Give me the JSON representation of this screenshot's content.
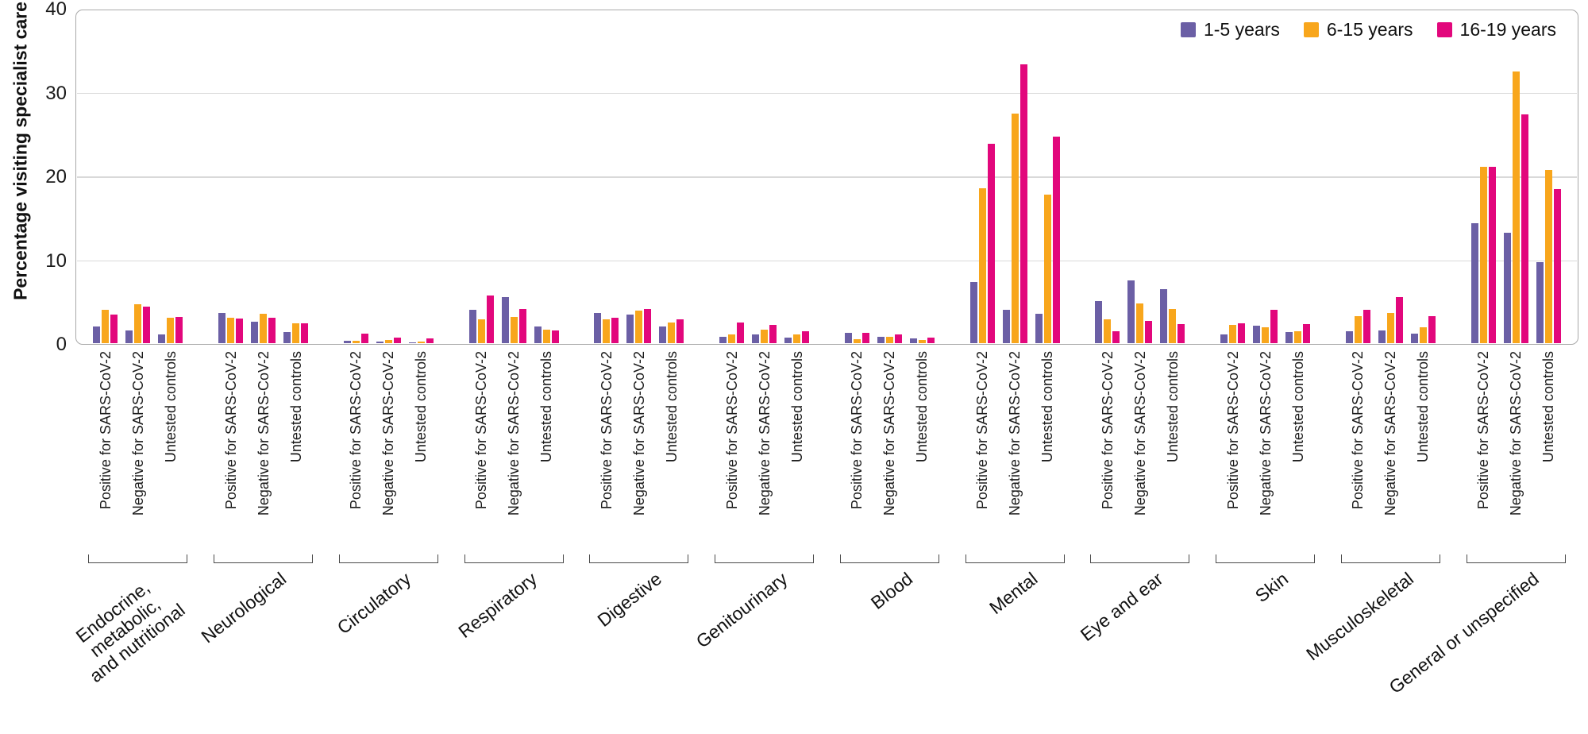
{
  "chart_data": {
    "type": "bar",
    "title": "",
    "ylabel": "Percentage visiting specialist care",
    "ylim": [
      0,
      40
    ],
    "yticks": [
      0,
      10,
      20,
      30,
      40
    ],
    "grid": "horizontal",
    "legend_position": "top-right",
    "series_names": [
      "1-5 years",
      "6-15 years",
      "16-19 years"
    ],
    "series_colors": [
      "#6b5fa5",
      "#f8a61c",
      "#e2077c"
    ],
    "group_labels": [
      "Positive for SARS-CoV-2",
      "Negative for SARS-CoV-2",
      "Untested controls"
    ],
    "categories": [
      {
        "label": "Endocrine,\nmetabolic,\nand nutritional",
        "groups": [
          {
            "label": "Positive for SARS-CoV-2",
            "values": [
              2.0,
              4.0,
              3.4
            ]
          },
          {
            "label": "Negative for SARS-CoV-2",
            "values": [
              1.5,
              4.6,
              4.4
            ]
          },
          {
            "label": "Untested controls",
            "values": [
              1.0,
              3.0,
              3.1
            ]
          }
        ]
      },
      {
        "label": "Neurological",
        "groups": [
          {
            "label": "Positive for SARS-CoV-2",
            "values": [
              3.6,
              3.0,
              2.9
            ]
          },
          {
            "label": "Negative for SARS-CoV-2",
            "values": [
              2.6,
              3.5,
              3.0
            ]
          },
          {
            "label": "Untested controls",
            "values": [
              1.3,
              2.4,
              2.4
            ]
          }
        ]
      },
      {
        "label": "Circulatory",
        "groups": [
          {
            "label": "Positive for SARS-CoV-2",
            "values": [
              0.3,
              0.3,
              1.1
            ]
          },
          {
            "label": "Negative for SARS-CoV-2",
            "values": [
              0.2,
              0.4,
              0.7
            ]
          },
          {
            "label": "Untested controls",
            "values": [
              0.1,
              0.2,
              0.6
            ]
          }
        ]
      },
      {
        "label": "Respiratory",
        "groups": [
          {
            "label": "Positive for SARS-CoV-2",
            "values": [
              4.0,
              2.8,
              5.7
            ]
          },
          {
            "label": "Negative for SARS-CoV-2",
            "values": [
              5.5,
              3.1,
              4.1
            ]
          },
          {
            "label": "Untested controls",
            "values": [
              2.0,
              1.6,
              1.5
            ]
          }
        ]
      },
      {
        "label": "Digestive",
        "groups": [
          {
            "label": "Positive for SARS-CoV-2",
            "values": [
              3.6,
              2.8,
              3.0
            ]
          },
          {
            "label": "Negative for SARS-CoV-2",
            "values": [
              3.4,
              3.9,
              4.1
            ]
          },
          {
            "label": "Untested controls",
            "values": [
              2.0,
              2.5,
              2.8
            ]
          }
        ]
      },
      {
        "label": "Genitourinary",
        "groups": [
          {
            "label": "Positive for SARS-CoV-2",
            "values": [
              0.8,
              1.0,
              2.5
            ]
          },
          {
            "label": "Negative for SARS-CoV-2",
            "values": [
              1.0,
              1.6,
              2.2
            ]
          },
          {
            "label": "Untested controls",
            "values": [
              0.7,
              1.0,
              1.4
            ]
          }
        ]
      },
      {
        "label": "Blood",
        "groups": [
          {
            "label": "Positive for SARS-CoV-2",
            "values": [
              1.2,
              0.5,
              1.2
            ]
          },
          {
            "label": "Negative for SARS-CoV-2",
            "values": [
              0.8,
              0.8,
              1.0
            ]
          },
          {
            "label": "Untested controls",
            "values": [
              0.6,
              0.4,
              0.7
            ]
          }
        ]
      },
      {
        "label": "Mental",
        "groups": [
          {
            "label": "Positive for SARS-CoV-2",
            "values": [
              7.3,
              18.5,
              23.8
            ]
          },
          {
            "label": "Negative for SARS-CoV-2",
            "values": [
              4.0,
              27.4,
              33.3
            ]
          },
          {
            "label": "Untested controls",
            "values": [
              3.5,
              17.7,
              24.6
            ]
          }
        ]
      },
      {
        "label": "Eye and ear",
        "groups": [
          {
            "label": "Positive for SARS-CoV-2",
            "values": [
              5.0,
              2.8,
              1.4
            ]
          },
          {
            "label": "Negative for SARS-CoV-2",
            "values": [
              7.5,
              4.7,
              2.7
            ]
          },
          {
            "label": "Untested controls",
            "values": [
              6.4,
              4.1,
              2.3
            ]
          }
        ]
      },
      {
        "label": "Skin",
        "groups": [
          {
            "label": "Positive for SARS-CoV-2",
            "values": [
              1.0,
              2.2,
              2.4
            ]
          },
          {
            "label": "Negative for SARS-CoV-2",
            "values": [
              2.1,
              1.9,
              4.0
            ]
          },
          {
            "label": "Untested controls",
            "values": [
              1.3,
              1.4,
              2.3
            ]
          }
        ]
      },
      {
        "label": "Musculoskeletal",
        "groups": [
          {
            "label": "Positive for SARS-CoV-2",
            "values": [
              1.4,
              3.2,
              4.0
            ]
          },
          {
            "label": "Negative for SARS-CoV-2",
            "values": [
              1.5,
              3.6,
              5.5
            ]
          },
          {
            "label": "Untested controls",
            "values": [
              1.1,
              1.9,
              3.2
            ]
          }
        ]
      },
      {
        "label": "General or unspecified",
        "groups": [
          {
            "label": "Positive for SARS-CoV-2",
            "values": [
              14.3,
              21.0,
              21.0
            ]
          },
          {
            "label": "Negative for SARS-CoV-2",
            "values": [
              13.2,
              32.4,
              27.3
            ]
          },
          {
            "label": "Untested controls",
            "values": [
              9.7,
              20.7,
              18.4
            ]
          }
        ]
      }
    ]
  }
}
